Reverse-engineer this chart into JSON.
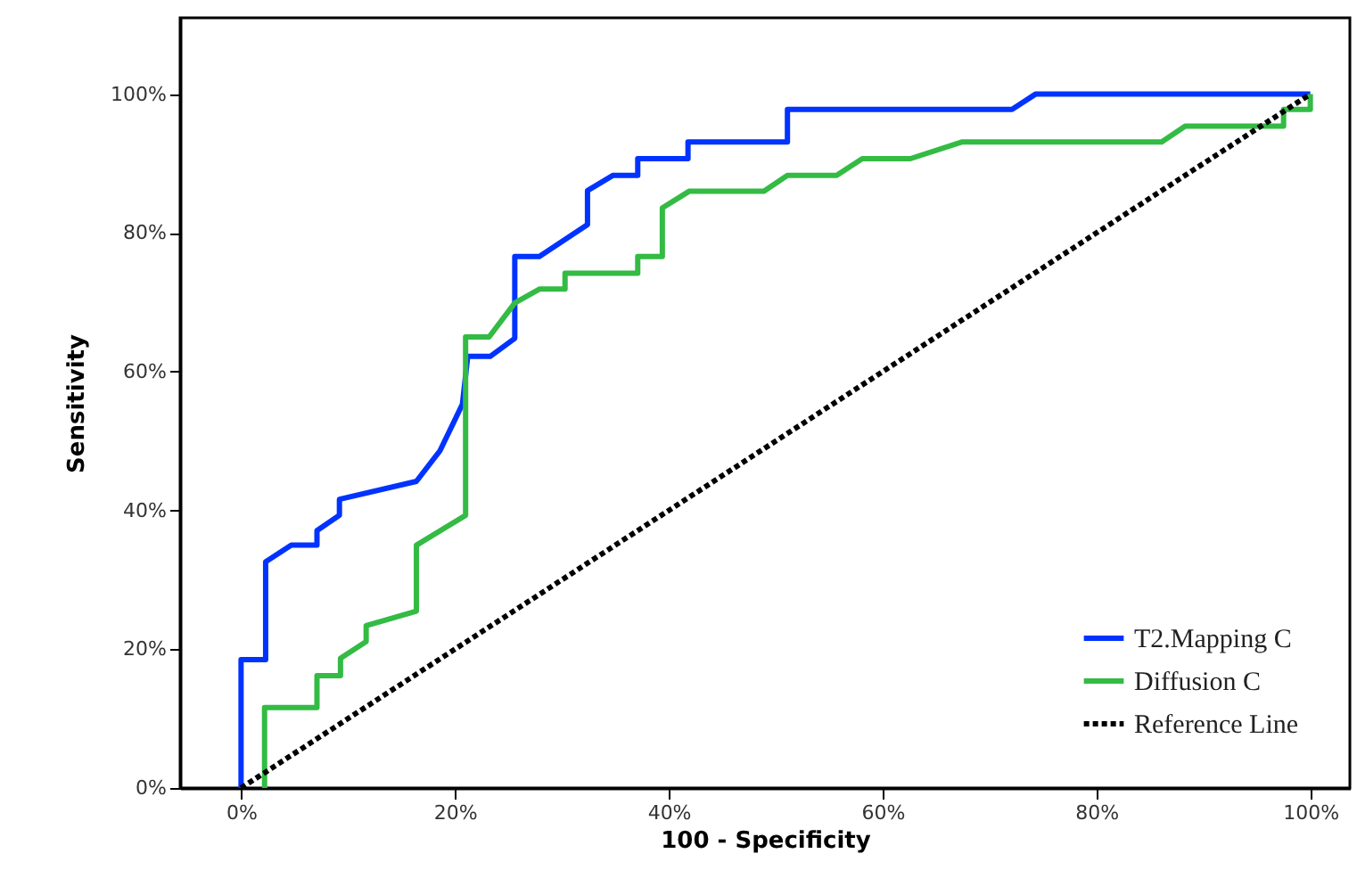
{
  "chart_data": {
    "type": "line",
    "xlabel": "100 - Specificity",
    "ylabel": "Sensitivity",
    "xlim": [
      -5.7,
      103.7
    ],
    "ylim": [
      0,
      111
    ],
    "xticks": [
      {
        "value": 0,
        "label": "0%"
      },
      {
        "value": 20,
        "label": "20%"
      },
      {
        "value": 40,
        "label": "40%"
      },
      {
        "value": 60,
        "label": "60%"
      },
      {
        "value": 80,
        "label": "80%"
      },
      {
        "value": 100,
        "label": "100%"
      }
    ],
    "yticks": [
      {
        "value": 0,
        "label": "0%"
      },
      {
        "value": 20,
        "label": "20%"
      },
      {
        "value": 40,
        "label": "40%"
      },
      {
        "value": 60,
        "label": "60%"
      },
      {
        "value": 80,
        "label": "80%"
      },
      {
        "value": 100,
        "label": "100%"
      }
    ],
    "grid": false,
    "legend": "bottom right",
    "series": [
      {
        "name": "T2.Mapping C",
        "color": "#0033ff",
        "line_style": "solid",
        "x": [
          0,
          0,
          2.3,
          2.3,
          4.7,
          7.1,
          7.1,
          9.2,
          9.2,
          16.4,
          18.6,
          20.7,
          21.2,
          23.3,
          25.6,
          25.6,
          27.9,
          32.4,
          32.4,
          34.8,
          37.1,
          37.1,
          41.8,
          41.8,
          51.1,
          51.1,
          72.1,
          74.3,
          100
        ],
        "values": [
          0,
          18.5,
          18.5,
          32.6,
          35,
          35,
          37.1,
          39.3,
          41.6,
          44.2,
          48.6,
          55.3,
          62.2,
          62.2,
          64.8,
          76.6,
          76.6,
          81.2,
          86.1,
          88.3,
          88.3,
          90.7,
          90.7,
          93.1,
          93.1,
          97.8,
          97.8,
          100,
          100
        ]
      },
      {
        "name": "Diffusion C",
        "color": "#33bb44",
        "line_style": "solid",
        "x": [
          2.2,
          2.2,
          7.1,
          7.1,
          9.3,
          9.3,
          11.7,
          11.7,
          16.4,
          16.4,
          21,
          21,
          23.2,
          25.6,
          27.9,
          30.3,
          30.3,
          37.1,
          37.1,
          39.4,
          39.4,
          41.9,
          48.9,
          51.1,
          55.7,
          58.1,
          62.6,
          67.4,
          86.1,
          88.3,
          97.5,
          97.5,
          100,
          100
        ],
        "values": [
          0,
          11.6,
          11.6,
          16.2,
          16.2,
          18.7,
          21.1,
          23.4,
          25.5,
          35,
          39.3,
          65,
          65,
          69.9,
          71.9,
          71.9,
          74.2,
          74.2,
          76.6,
          76.6,
          83.6,
          86,
          86,
          88.3,
          88.3,
          90.7,
          90.7,
          93.1,
          93.1,
          95.4,
          95.4,
          97.8,
          97.8,
          100
        ]
      },
      {
        "name": "Reference Line",
        "color": "#000000",
        "line_style": "dashed",
        "x": [
          0,
          100
        ],
        "values": [
          0,
          100
        ]
      }
    ]
  }
}
